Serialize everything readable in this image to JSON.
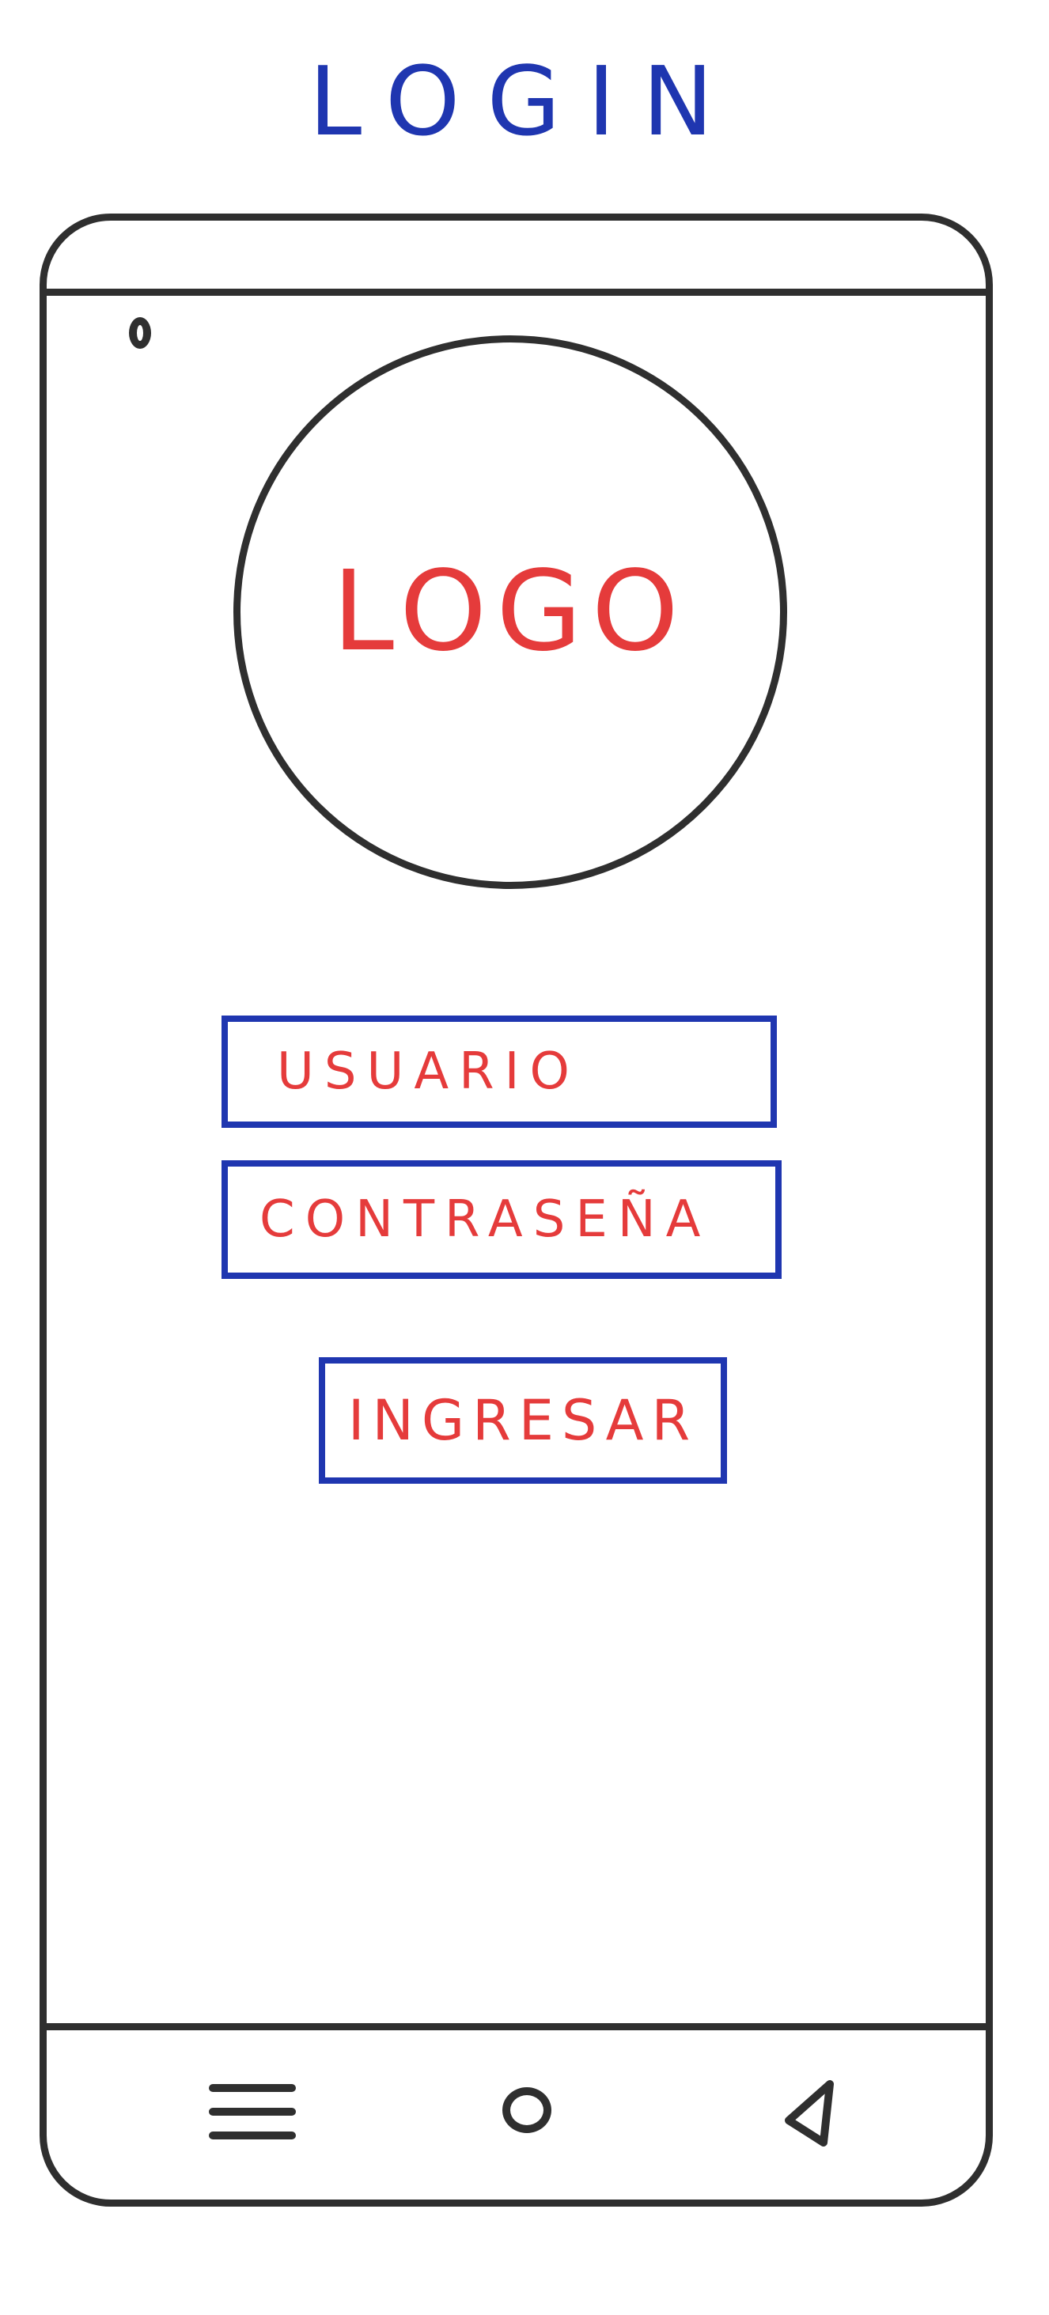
{
  "page": {
    "title": "LOGIN"
  },
  "logo": {
    "label": "LOGO"
  },
  "form": {
    "username_label": "USUARIO",
    "password_label": "CONTRASEÑA",
    "submit_label": "INGRESAR"
  },
  "icons": {
    "camera": "camera-icon",
    "menu": "menu-icon",
    "home": "home-icon",
    "back": "back-icon"
  },
  "colors": {
    "title": "#1f36b0",
    "sketch": "#2f2f2f",
    "field_border": "#1f36b0",
    "field_text": "#e53b3b",
    "logo_text": "#e53b3b"
  }
}
